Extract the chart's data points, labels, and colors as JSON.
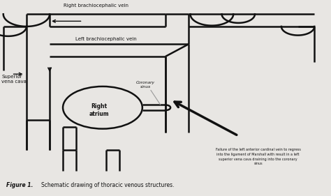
{
  "figure_bg": "#e8e6e3",
  "panel_bg": "#f5f4f1",
  "line_color": "#111111",
  "line_width": 1.8,
  "text_color": "#111111",
  "label_right_brachio": "Right brachiocephalic vein",
  "label_left_brachio": "Left brachiocephalic vein",
  "label_svc": "Superior\nvena cava",
  "label_right_atrium": "Right\natrium",
  "label_coronary": "Coronary\nsinus",
  "label_annotation": "Failure of the left anterior cardinal vein to regress\ninto the ligament of Marshall with result in a left\nsuperior vena cava draining into the coronary\nsinus",
  "figsize": [
    4.74,
    2.81
  ],
  "dpi": 100
}
